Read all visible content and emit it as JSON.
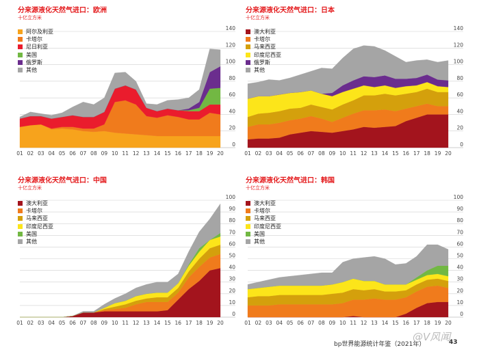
{
  "footer": {
    "text": "bp世界能源统计年鉴（2021年）",
    "page": "43"
  },
  "watermark": "@V风闻",
  "years": [
    "01",
    "02",
    "03",
    "04",
    "05",
    "06",
    "07",
    "08",
    "09",
    "10",
    "11",
    "12",
    "13",
    "14",
    "15",
    "16",
    "17",
    "18",
    "19",
    "20"
  ],
  "chart_data": [
    {
      "type": "area",
      "title": "分来源液化天然气进口：欧洲",
      "unit": "十亿立方米",
      "ylim": [
        0,
        140
      ],
      "yticks": [
        0,
        20,
        40,
        60,
        80,
        100,
        120,
        140
      ],
      "series": [
        {
          "name": "阿尔及利亚",
          "color": "#f7a31c",
          "values": [
            25,
            27,
            28,
            22,
            23,
            22,
            20,
            19,
            20,
            18,
            17,
            16,
            15,
            14,
            14,
            14,
            14,
            14,
            14,
            14
          ]
        },
        {
          "name": "卡塔尔",
          "color": "#f07b1c",
          "values": [
            0,
            0,
            0,
            1,
            2,
            3,
            3,
            4,
            8,
            37,
            40,
            36,
            23,
            22,
            25,
            23,
            20,
            20,
            28,
            26
          ]
        },
        {
          "name": "尼日利亚",
          "color": "#ea1c2d",
          "values": [
            10,
            11,
            10,
            12,
            12,
            14,
            14,
            14,
            15,
            16,
            18,
            18,
            10,
            8,
            8,
            8,
            10,
            10,
            10,
            12
          ]
        },
        {
          "name": "美国",
          "color": "#72b843",
          "values": [
            0,
            0,
            0,
            0,
            0,
            0,
            0,
            0,
            0,
            0,
            0,
            0,
            0,
            0,
            0,
            0,
            1,
            4,
            19,
            20
          ]
        },
        {
          "name": "俄罗斯",
          "color": "#6b2d8e",
          "values": [
            0,
            0,
            0,
            0,
            0,
            0,
            0,
            0,
            0,
            0,
            0,
            0,
            0,
            0,
            0,
            0,
            2,
            7,
            20,
            26
          ]
        },
        {
          "name": "其他",
          "color": "#a5a5a5",
          "values": [
            2,
            5,
            3,
            4,
            5,
            10,
            18,
            15,
            17,
            19,
            16,
            10,
            5,
            8,
            10,
            13,
            13,
            15,
            28,
            20
          ]
        }
      ]
    },
    {
      "type": "area",
      "title": "分来源液化天然气进口：日本",
      "unit": "十亿立方米",
      "ylim": [
        0,
        140
      ],
      "yticks": [
        0,
        20,
        40,
        60,
        80,
        100,
        120,
        140
      ],
      "series": [
        {
          "name": "澳大利亚",
          "color": "#a3141d",
          "values": [
            10,
            11,
            11,
            12,
            16,
            18,
            20,
            19,
            18,
            20,
            22,
            25,
            24,
            25,
            26,
            32,
            36,
            40,
            40,
            40
          ]
        },
        {
          "name": "卡塔尔",
          "color": "#f07b1c",
          "values": [
            15,
            17,
            17,
            18,
            17,
            17,
            18,
            16,
            13,
            16,
            19,
            20,
            21,
            21,
            18,
            15,
            14,
            13,
            10,
            10
          ]
        },
        {
          "name": "马来西亚",
          "color": "#d4a00c",
          "values": [
            12,
            13,
            14,
            14,
            14,
            13,
            14,
            14,
            15,
            16,
            16,
            18,
            18,
            19,
            19,
            18,
            17,
            18,
            17,
            17
          ]
        },
        {
          "name": "印度尼西亚",
          "color": "#fce51a",
          "values": [
            22,
            21,
            20,
            20,
            19,
            19,
            17,
            16,
            16,
            15,
            14,
            12,
            10,
            10,
            9,
            9,
            8,
            8,
            7,
            6
          ]
        },
        {
          "name": "俄罗斯",
          "color": "#6b2d8e",
          "values": [
            0,
            0,
            0,
            0,
            0,
            0,
            0,
            0,
            4,
            8,
            10,
            11,
            12,
            12,
            11,
            9,
            9,
            9,
            8,
            8
          ]
        },
        {
          "name": "其他",
          "color": "#a5a5a5",
          "values": [
            18,
            17,
            20,
            17,
            18,
            21,
            23,
            31,
            29,
            33,
            38,
            37,
            37,
            30,
            27,
            20,
            21,
            18,
            21,
            24
          ]
        }
      ]
    },
    {
      "type": "area",
      "title": "分来源液化天然气进口：中国",
      "unit": "十亿立方米",
      "ylim": [
        0,
        100
      ],
      "yticks": [
        0,
        10,
        20,
        30,
        40,
        50,
        60,
        70,
        80,
        90,
        100
      ],
      "series": [
        {
          "name": "澳大利亚",
          "color": "#a3141d",
          "values": [
            0,
            0,
            0,
            0,
            0,
            1,
            4,
            4,
            5,
            5,
            5,
            5,
            5,
            5,
            6,
            15,
            24,
            31,
            40,
            42
          ]
        },
        {
          "name": "卡塔尔",
          "color": "#f07b1c",
          "values": [
            0,
            0,
            0,
            0,
            0,
            0,
            0,
            0,
            1,
            2,
            3,
            6,
            8,
            8,
            7,
            6,
            10,
            12,
            11,
            12
          ]
        },
        {
          "name": "马来西亚",
          "color": "#d4a00c",
          "values": [
            0,
            0,
            0,
            0,
            0,
            0,
            0,
            0,
            1,
            2,
            3,
            3,
            3,
            4,
            4,
            4,
            5,
            7,
            8,
            8
          ]
        },
        {
          "name": "印度尼西亚",
          "color": "#fce51a",
          "values": [
            0,
            0,
            0,
            0,
            0,
            0,
            0,
            0,
            1,
            3,
            3,
            4,
            4,
            4,
            4,
            4,
            5,
            6,
            7,
            7
          ]
        },
        {
          "name": "美国",
          "color": "#72b843",
          "values": [
            0,
            0,
            0,
            0,
            0,
            0,
            0,
            0,
            0,
            0,
            0,
            0,
            0,
            0,
            0,
            0,
            1,
            3,
            0,
            3
          ]
        },
        {
          "name": "其他",
          "color": "#a5a5a5",
          "values": [
            0,
            0,
            0,
            0,
            0,
            0,
            1,
            1,
            3,
            4,
            6,
            7,
            8,
            9,
            9,
            8,
            11,
            14,
            18,
            25
          ]
        }
      ]
    },
    {
      "type": "area",
      "title": "分来源液化天然气进口：韩国",
      "unit": "十亿立方米",
      "ylim": [
        0,
        100
      ],
      "yticks": [
        0,
        10,
        20,
        30,
        40,
        50,
        60,
        70,
        80,
        90,
        100
      ],
      "series": [
        {
          "name": "澳大利亚",
          "color": "#a3141d",
          "values": [
            0,
            0,
            0,
            0,
            0,
            0,
            0,
            0,
            0,
            0,
            1,
            0,
            0,
            0,
            0,
            3,
            8,
            12,
            13,
            13
          ]
        },
        {
          "name": "卡塔尔",
          "color": "#f07b1c",
          "values": [
            10,
            10,
            10,
            11,
            11,
            11,
            11,
            11,
            11,
            12,
            14,
            15,
            16,
            15,
            15,
            14,
            14,
            14,
            14,
            12
          ]
        },
        {
          "name": "马来西亚",
          "color": "#d4a00c",
          "values": [
            7,
            8,
            8,
            8,
            8,
            8,
            8,
            8,
            9,
            9,
            9,
            8,
            8,
            7,
            7,
            6,
            6,
            6,
            6,
            6
          ]
        },
        {
          "name": "印度尼西亚",
          "color": "#fce51a",
          "values": [
            7,
            7,
            8,
            8,
            8,
            8,
            8,
            8,
            8,
            9,
            9,
            8,
            7,
            6,
            6,
            5,
            4,
            4,
            4,
            4
          ]
        },
        {
          "name": "美国",
          "color": "#72b843",
          "values": [
            0,
            0,
            0,
            0,
            0,
            0,
            0,
            0,
            0,
            0,
            0,
            0,
            0,
            0,
            0,
            0,
            2,
            4,
            7,
            9
          ]
        },
        {
          "name": "其他",
          "color": "#a5a5a5",
          "values": [
            4,
            5,
            6,
            7,
            8,
            9,
            10,
            11,
            10,
            17,
            17,
            20,
            21,
            22,
            17,
            18,
            18,
            22,
            18,
            14
          ]
        }
      ]
    }
  ]
}
